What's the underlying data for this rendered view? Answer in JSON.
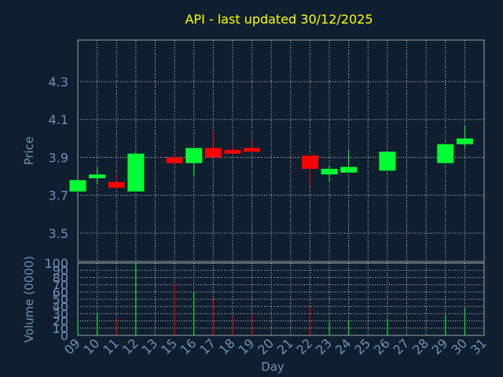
{
  "title": "API - last updated 30/12/2025",
  "chart_data": {
    "type": "candlestick",
    "title": "API - last updated 30/12/2025",
    "xlabel": "Day",
    "ylabel_price": "Price",
    "ylabel_volume": "Volume (0000)",
    "days": [
      "09",
      "10",
      "11",
      "12",
      "13",
      "15",
      "16",
      "17",
      "18",
      "19",
      "20",
      "21",
      "22",
      "23",
      "24",
      "25",
      "26",
      "27",
      "28",
      "29",
      "30",
      "31"
    ],
    "price_ticks": [
      "3.5",
      "3.7",
      "3.9",
      "4.1",
      "4.3"
    ],
    "price_ylim": [
      3.35,
      4.52
    ],
    "volume_ticks": [
      "0",
      "10",
      "20",
      "30",
      "40",
      "50",
      "60",
      "70",
      "80",
      "90",
      "100"
    ],
    "volume_ylim": [
      0,
      100
    ],
    "candles": [
      {
        "day": "09",
        "open": 3.72,
        "close": 3.78,
        "high": 3.78,
        "low": 3.72,
        "volume": 20
      },
      {
        "day": "10",
        "open": 3.79,
        "close": 3.81,
        "high": 3.85,
        "low": 3.76,
        "volume": 30
      },
      {
        "day": "11",
        "open": 3.77,
        "close": 3.74,
        "high": 3.81,
        "low": 3.73,
        "volume": 25
      },
      {
        "day": "12",
        "open": 3.72,
        "close": 3.92,
        "high": 3.93,
        "low": 3.72,
        "volume": 100
      },
      {
        "day": "15",
        "open": 3.9,
        "close": 3.87,
        "high": 3.92,
        "low": 3.86,
        "volume": 72
      },
      {
        "day": "16",
        "open": 3.87,
        "close": 3.95,
        "high": 3.95,
        "low": 3.8,
        "volume": 60
      },
      {
        "day": "17",
        "open": 3.95,
        "close": 3.9,
        "high": 4.04,
        "low": 3.9,
        "volume": 50
      },
      {
        "day": "18",
        "open": 3.94,
        "close": 3.92,
        "high": 3.96,
        "low": 3.92,
        "volume": 27
      },
      {
        "day": "19",
        "open": 3.95,
        "close": 3.93,
        "high": 3.99,
        "low": 3.93,
        "volume": 28
      },
      {
        "day": "22",
        "open": 3.91,
        "close": 3.84,
        "high": 3.91,
        "low": 3.75,
        "volume": 40
      },
      {
        "day": "23",
        "open": 3.81,
        "close": 3.84,
        "high": 3.86,
        "low": 3.77,
        "volume": 18
      },
      {
        "day": "24",
        "open": 3.82,
        "close": 3.85,
        "high": 3.94,
        "low": 3.82,
        "volume": 20
      },
      {
        "day": "26",
        "open": 3.83,
        "close": 3.93,
        "high": 3.93,
        "low": 3.83,
        "volume": 23
      },
      {
        "day": "29",
        "open": 3.87,
        "close": 3.97,
        "high": 3.97,
        "low": 3.87,
        "volume": 28
      },
      {
        "day": "30",
        "open": 3.97,
        "close": 4.0,
        "high": 4.07,
        "low": 3.95,
        "volume": 38
      }
    ],
    "colors": {
      "background": "#0f1f30",
      "axis": "#a0a0a0",
      "grid": "#c8c8c8",
      "up": "#00ff33",
      "down": "#ff0000",
      "title": "#ffff00",
      "label": "#6f8fb8"
    },
    "grid": true
  }
}
